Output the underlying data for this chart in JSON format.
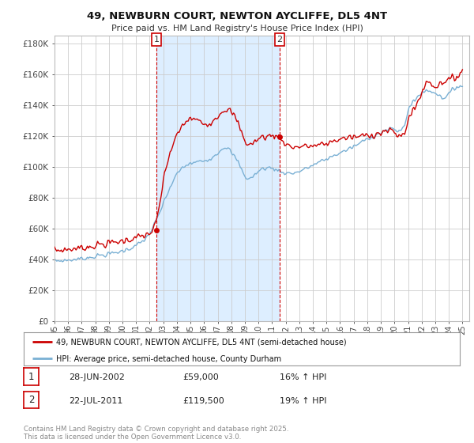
{
  "title": "49, NEWBURN COURT, NEWTON AYCLIFFE, DL5 4NT",
  "subtitle": "Price paid vs. HM Land Registry's House Price Index (HPI)",
  "ylabel_ticks": [
    "£0",
    "£20K",
    "£40K",
    "£60K",
    "£80K",
    "£100K",
    "£120K",
    "£140K",
    "£160K",
    "£180K"
  ],
  "ytick_values": [
    0,
    20000,
    40000,
    60000,
    80000,
    100000,
    120000,
    140000,
    160000,
    180000
  ],
  "ylim": [
    0,
    185000
  ],
  "xlim_start": 1995.0,
  "xlim_end": 2025.5,
  "background_color": "#ffffff",
  "plot_bg_color": "#ffffff",
  "ownership_fill_color": "#ddeeff",
  "grid_color": "#cccccc",
  "red_line_color": "#cc0000",
  "blue_line_color": "#7ab0d4",
  "marker1_date": 2002.49,
  "marker1_price": 59000,
  "marker2_date": 2011.55,
  "marker2_price": 119500,
  "legend_label_red": "49, NEWBURN COURT, NEWTON AYCLIFFE, DL5 4NT (semi-detached house)",
  "legend_label_blue": "HPI: Average price, semi-detached house, County Durham",
  "sale1_text": "28-JUN-2002",
  "sale1_price": "£59,000",
  "sale1_hpi": "16% ↑ HPI",
  "sale2_text": "22-JUL-2011",
  "sale2_price": "£119,500",
  "sale2_hpi": "19% ↑ HPI",
  "footer": "Contains HM Land Registry data © Crown copyright and database right 2025.\nThis data is licensed under the Open Government Licence v3.0."
}
